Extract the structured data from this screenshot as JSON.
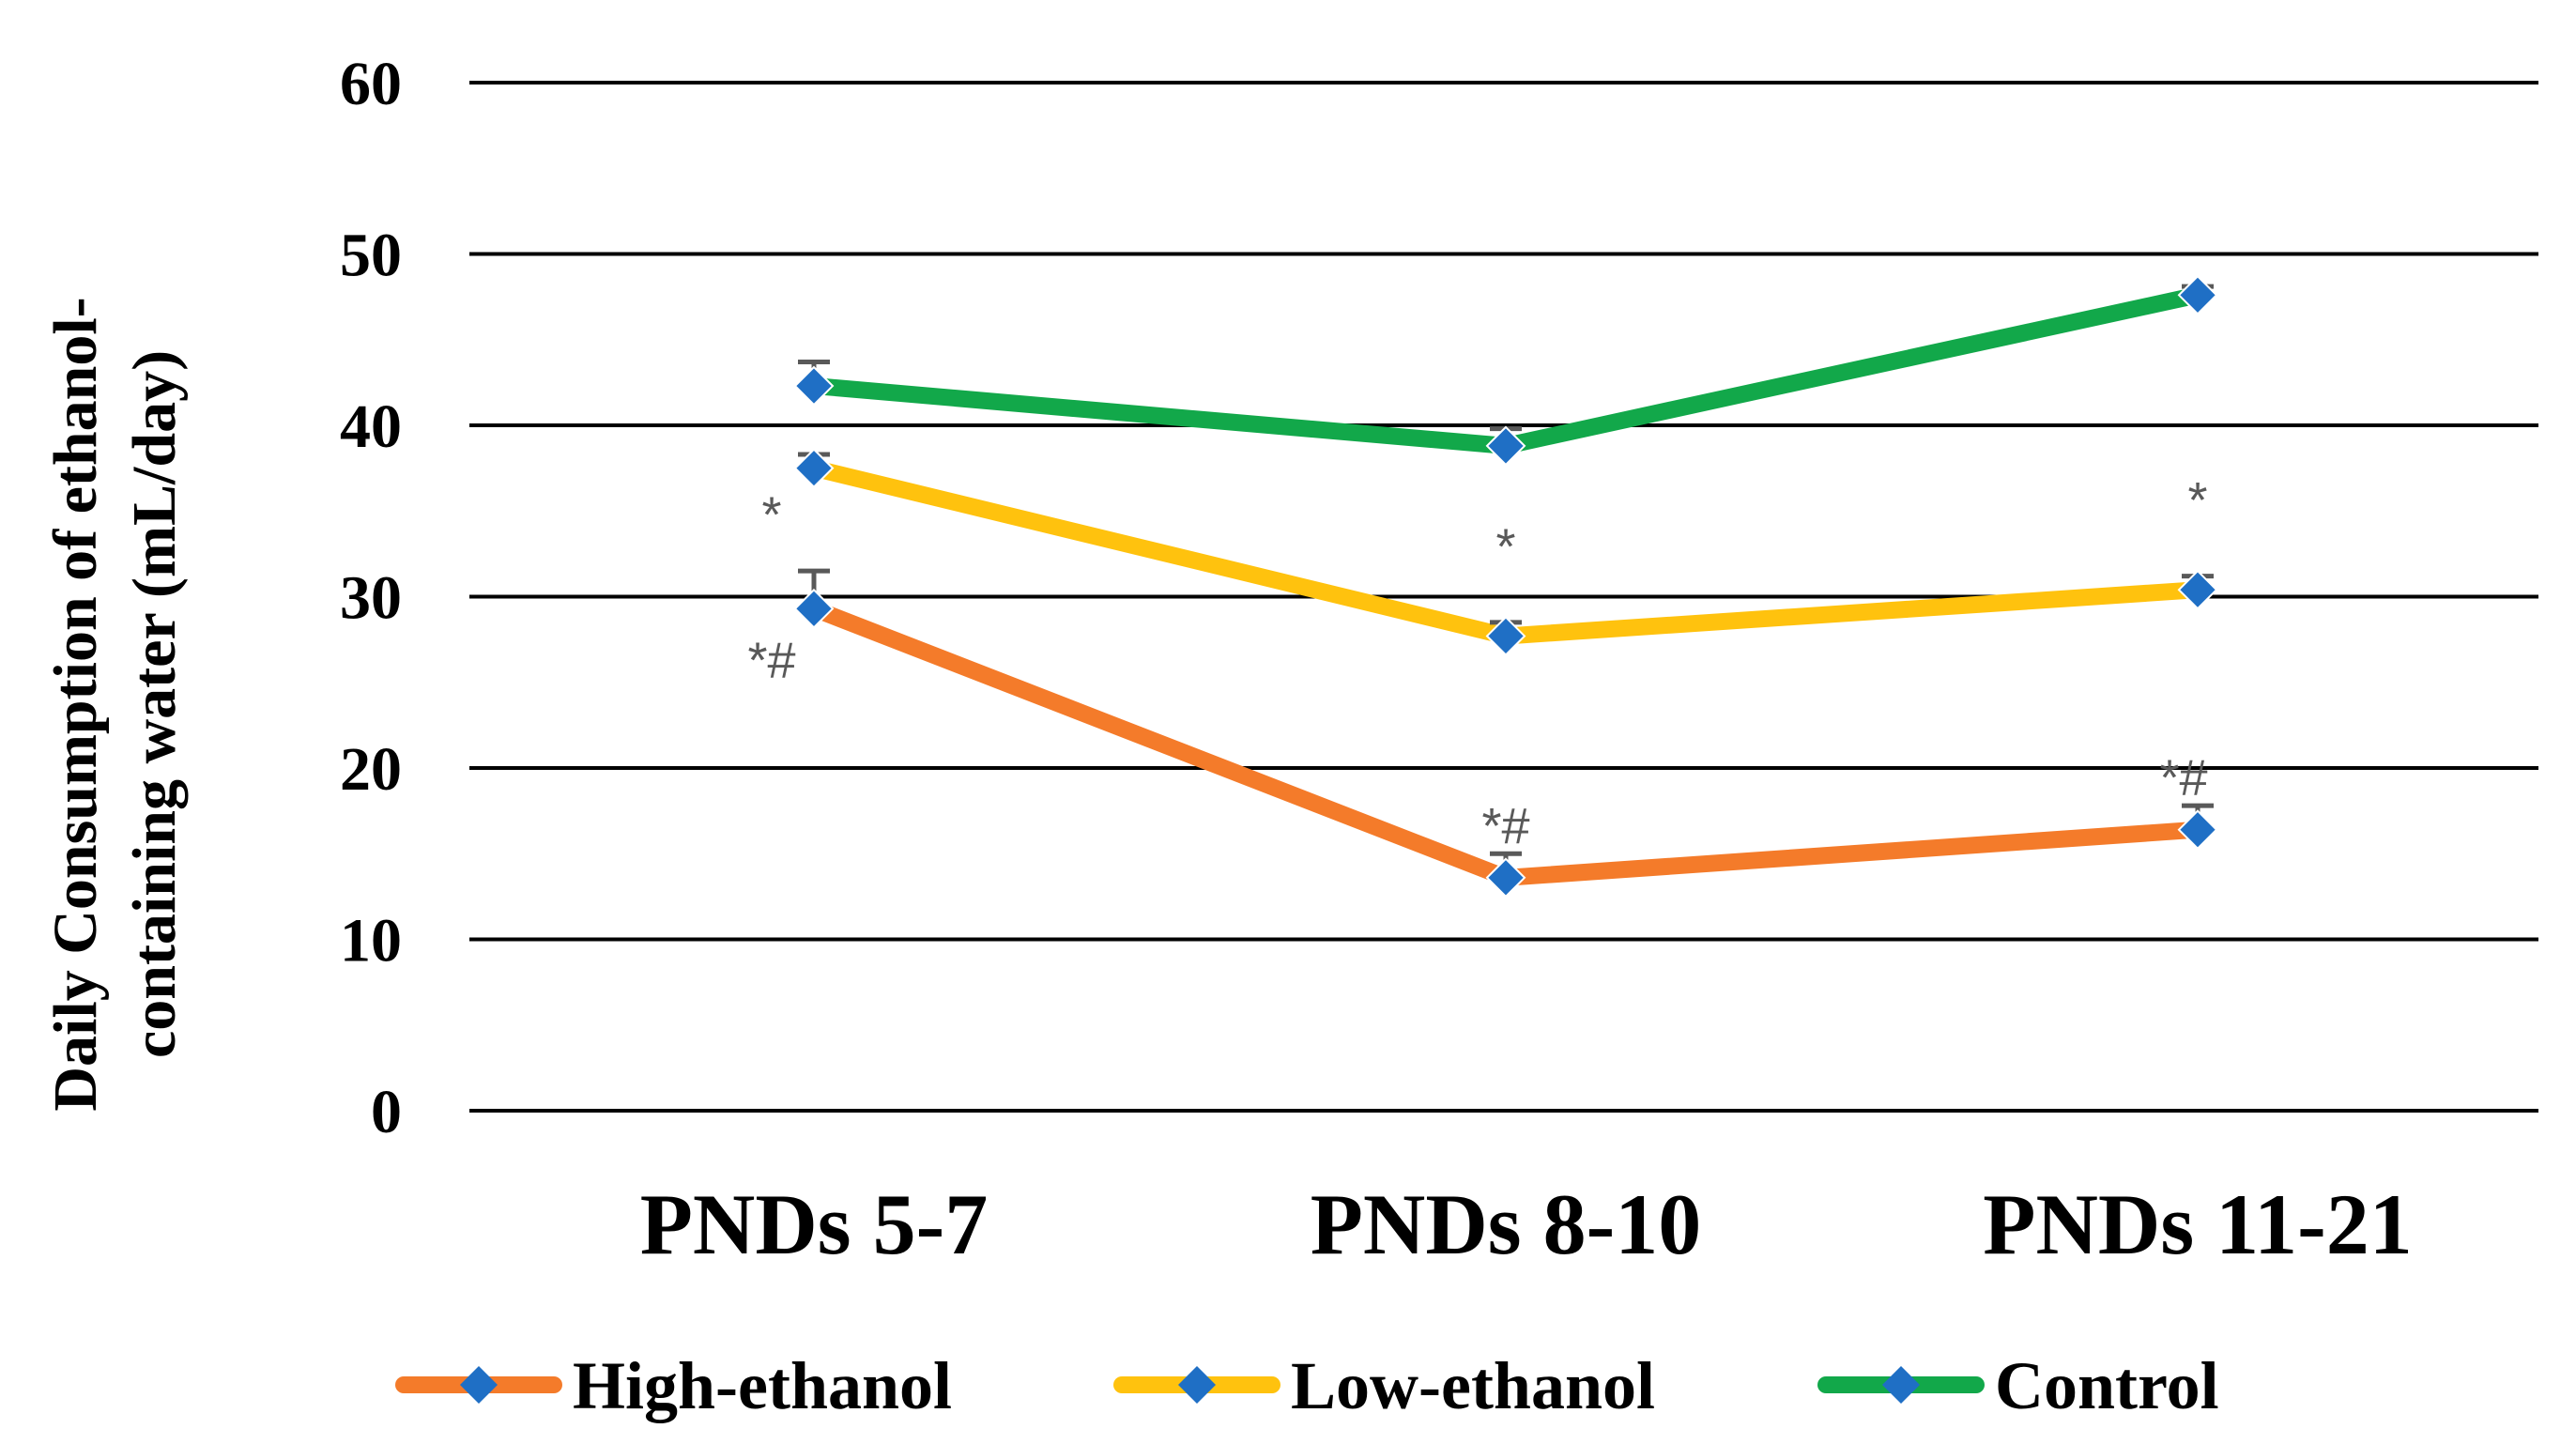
{
  "chart_data": {
    "type": "line",
    "title": "",
    "xlabel": "",
    "ylabel_lines": [
      "Daily Consumption of ethanol-",
      "containing water (mL/day)"
    ],
    "categories": [
      "PNDs 5-7",
      "PNDs 8-10",
      "PNDs 11-21"
    ],
    "ylim": [
      0,
      60
    ],
    "yticks": [
      0,
      10,
      20,
      30,
      40,
      50,
      60
    ],
    "grid": true,
    "legend_position": "bottom",
    "marker_color": "#1F6FC5",
    "series": [
      {
        "name": "High-ethanol",
        "color": "#F47B2A",
        "values": [
          29.3,
          13.6,
          16.4
        ],
        "errors": [
          2.2,
          1.4,
          1.4
        ],
        "annotations": [
          "*#",
          "*#",
          "*#"
        ]
      },
      {
        "name": "Low-ethanol",
        "color": "#FFC20E",
        "values": [
          37.5,
          27.7,
          30.4
        ],
        "errors": [
          0.8,
          0.8,
          0.8
        ],
        "annotations": [
          "*",
          "*",
          "*"
        ]
      },
      {
        "name": "Control",
        "color": "#12A84A",
        "values": [
          42.3,
          38.8,
          47.6
        ],
        "errors": [
          1.4,
          1.0,
          0.5
        ],
        "annotations": [
          "",
          "",
          ""
        ]
      }
    ]
  }
}
